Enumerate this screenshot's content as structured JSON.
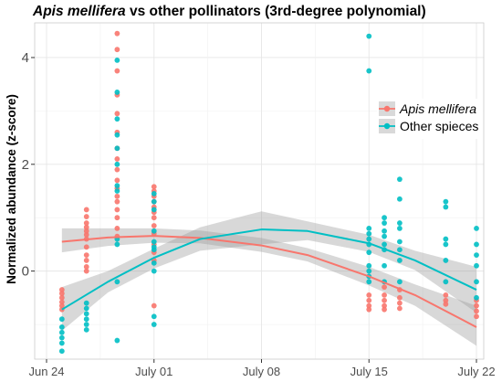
{
  "chart_data": {
    "type": "scatter",
    "title_italic": "Apis mellifera",
    "title_rest": " vs other pollinators (3rd-degree polynomial)",
    "xlabel": "",
    "ylabel": "Normalized abundance (z-score)",
    "x_axis": {
      "min_day": 0,
      "max_day": 28.5,
      "ticks": [
        {
          "label": "Jun 24",
          "day": 0
        },
        {
          "label": "July 01",
          "day": 7
        },
        {
          "label": "July 08",
          "day": 14
        },
        {
          "label": "July 15",
          "day": 21
        },
        {
          "label": "July 22",
          "day": 28
        }
      ]
    },
    "y_axis": {
      "range": [
        -1.65,
        4.65
      ],
      "ticks": [
        {
          "label": "0",
          "value": 0
        },
        {
          "label": "2",
          "value": 2
        },
        {
          "label": "4",
          "value": 4
        }
      ]
    },
    "grid": true,
    "legend": {
      "position": "right",
      "entries": [
        {
          "label": "Apis mellifera",
          "italic": true,
          "color": "#F8766D"
        },
        {
          "label": "Other spieces",
          "italic": false,
          "color": "#00BFC4"
        }
      ]
    },
    "series": [
      {
        "name": "Apis mellifera",
        "color": "#F8766D",
        "points": [
          [
            1,
            -0.35
          ],
          [
            1,
            -0.42
          ],
          [
            1,
            -0.5
          ],
          [
            1,
            -0.58
          ],
          [
            1,
            -0.65
          ],
          [
            1,
            -0.72
          ],
          [
            2.6,
            0.0
          ],
          [
            2.6,
            0.08
          ],
          [
            2.6,
            0.2
          ],
          [
            2.6,
            0.3
          ],
          [
            2.6,
            0.45
          ],
          [
            2.6,
            0.6
          ],
          [
            2.6,
            0.68
          ],
          [
            2.6,
            0.75
          ],
          [
            2.6,
            0.82
          ],
          [
            2.6,
            0.9
          ],
          [
            2.6,
            1.02
          ],
          [
            2.6,
            1.15
          ],
          [
            4.6,
            0.65
          ],
          [
            4.6,
            0.8
          ],
          [
            4.6,
            1.0
          ],
          [
            4.6,
            1.15
          ],
          [
            4.6,
            1.3
          ],
          [
            4.6,
            1.4
          ],
          [
            4.6,
            1.55
          ],
          [
            4.6,
            1.7
          ],
          [
            4.6,
            1.9
          ],
          [
            4.6,
            2.1
          ],
          [
            4.6,
            2.3
          ],
          [
            4.6,
            2.6
          ],
          [
            4.6,
            2.95
          ],
          [
            4.6,
            3.3
          ],
          [
            4.6,
            3.75
          ],
          [
            4.6,
            4.15
          ],
          [
            4.6,
            4.45
          ],
          [
            7,
            -0.65
          ],
          [
            7,
            0.2
          ],
          [
            7,
            0.35
          ],
          [
            7,
            0.5
          ],
          [
            7,
            0.7
          ],
          [
            7,
            0.85
          ],
          [
            7,
            1.0
          ],
          [
            7,
            1.1
          ],
          [
            7,
            1.2
          ],
          [
            7,
            1.3
          ],
          [
            7,
            1.4
          ],
          [
            7,
            1.5
          ],
          [
            7,
            1.58
          ],
          [
            21,
            -0.45
          ],
          [
            21,
            -0.55
          ],
          [
            21,
            -0.65
          ],
          [
            21,
            -0.72
          ],
          [
            22,
            -0.3
          ],
          [
            22,
            -0.45
          ],
          [
            22,
            -0.55
          ],
          [
            22,
            -0.65
          ],
          [
            22,
            -0.72
          ],
          [
            23,
            -0.35
          ],
          [
            23,
            -0.5
          ],
          [
            23,
            -0.6
          ],
          [
            23,
            -0.7
          ],
          [
            26,
            -0.45
          ],
          [
            26,
            -0.55
          ],
          [
            26,
            -0.62
          ],
          [
            28,
            -0.55
          ],
          [
            28,
            -0.65
          ],
          [
            28,
            -0.75
          ],
          [
            28,
            -0.85
          ]
        ]
      },
      {
        "name": "Other spieces",
        "color": "#00BFC4",
        "points": [
          [
            1,
            -0.9
          ],
          [
            1,
            -1.05
          ],
          [
            1,
            -1.15
          ],
          [
            1,
            -1.25
          ],
          [
            1,
            -1.35
          ],
          [
            1,
            -1.5
          ],
          [
            2.6,
            -0.6
          ],
          [
            2.6,
            -0.7
          ],
          [
            2.6,
            -0.8
          ],
          [
            2.6,
            -0.9
          ],
          [
            2.6,
            -1.0
          ],
          [
            2.6,
            -1.1
          ],
          [
            4.6,
            -1.3
          ],
          [
            4.6,
            -0.2
          ],
          [
            4.6,
            0.5
          ],
          [
            4.6,
            0.6
          ],
          [
            4.6,
            1.5
          ],
          [
            4.6,
            1.6
          ],
          [
            4.6,
            2.0
          ],
          [
            4.6,
            2.3
          ],
          [
            4.6,
            2.55
          ],
          [
            4.6,
            2.85
          ],
          [
            4.6,
            3.35
          ],
          [
            4.6,
            3.95
          ],
          [
            7,
            -1.0
          ],
          [
            7,
            -0.85
          ],
          [
            7,
            0.0
          ],
          [
            7,
            0.15
          ],
          [
            7,
            0.4
          ],
          [
            7,
            0.45
          ],
          [
            7,
            0.55
          ],
          [
            7,
            0.75
          ],
          [
            7,
            1.15
          ],
          [
            7,
            1.3
          ],
          [
            7,
            1.45
          ],
          [
            21,
            -0.2
          ],
          [
            21,
            -0.1
          ],
          [
            21,
            0.0
          ],
          [
            21,
            0.1
          ],
          [
            21,
            0.35
          ],
          [
            21,
            0.5
          ],
          [
            21,
            0.6
          ],
          [
            21,
            0.7
          ],
          [
            21,
            0.8
          ],
          [
            21,
            3.75
          ],
          [
            21,
            4.4
          ],
          [
            22,
            -0.2
          ],
          [
            22,
            0.1
          ],
          [
            22,
            0.4
          ],
          [
            22,
            0.5
          ],
          [
            22,
            0.65
          ],
          [
            22,
            0.75
          ],
          [
            22,
            0.9
          ],
          [
            22,
            1.0
          ],
          [
            23,
            -0.2
          ],
          [
            23,
            0.2
          ],
          [
            23,
            0.4
          ],
          [
            23,
            0.55
          ],
          [
            23,
            0.8
          ],
          [
            23,
            0.9
          ],
          [
            23,
            1.35
          ],
          [
            23,
            1.72
          ],
          [
            26,
            -0.2
          ],
          [
            26,
            0.2
          ],
          [
            26,
            0.5
          ],
          [
            26,
            0.6
          ],
          [
            26,
            1.2
          ],
          [
            26,
            1.3
          ],
          [
            28,
            -0.5
          ],
          [
            28,
            -0.2
          ],
          [
            28,
            0.1
          ],
          [
            28,
            0.3
          ],
          [
            28,
            0.5
          ],
          [
            28,
            0.8
          ]
        ]
      }
    ],
    "fit_curves": [
      {
        "series": "Apis mellifera",
        "color": "#F8766D",
        "points": [
          [
            1,
            0.55
          ],
          [
            4,
            0.63
          ],
          [
            7,
            0.66
          ],
          [
            10,
            0.62
          ],
          [
            14,
            0.48
          ],
          [
            17,
            0.3
          ],
          [
            21,
            -0.1
          ],
          [
            24,
            -0.45
          ],
          [
            28,
            -1.05
          ]
        ],
        "band_lower": [
          [
            1,
            0.35
          ],
          [
            4,
            0.47
          ],
          [
            7,
            0.53
          ],
          [
            10,
            0.52
          ],
          [
            14,
            0.36
          ],
          [
            17,
            0.18
          ],
          [
            21,
            -0.27
          ],
          [
            24,
            -0.65
          ],
          [
            28,
            -1.4
          ]
        ],
        "band_upper": [
          [
            1,
            0.8
          ],
          [
            4,
            0.8
          ],
          [
            7,
            0.8
          ],
          [
            10,
            0.76
          ],
          [
            14,
            0.62
          ],
          [
            17,
            0.43
          ],
          [
            21,
            0.08
          ],
          [
            24,
            -0.25
          ],
          [
            28,
            -0.65
          ]
        ]
      },
      {
        "series": "Other spieces",
        "color": "#00BFC4",
        "points": [
          [
            1,
            -0.72
          ],
          [
            4,
            -0.2
          ],
          [
            7,
            0.25
          ],
          [
            10,
            0.6
          ],
          [
            14,
            0.78
          ],
          [
            17,
            0.75
          ],
          [
            21,
            0.52
          ],
          [
            24,
            0.2
          ],
          [
            28,
            -0.35
          ]
        ],
        "band_lower": [
          [
            1,
            -1.12
          ],
          [
            4,
            -0.4
          ],
          [
            7,
            0.05
          ],
          [
            10,
            0.38
          ],
          [
            14,
            0.5
          ],
          [
            17,
            0.58
          ],
          [
            21,
            0.36
          ],
          [
            24,
            0.02
          ],
          [
            28,
            -0.78
          ]
        ],
        "band_upper": [
          [
            1,
            -0.3
          ],
          [
            4,
            0.0
          ],
          [
            7,
            0.42
          ],
          [
            10,
            0.82
          ],
          [
            14,
            1.12
          ],
          [
            17,
            0.93
          ],
          [
            21,
            0.68
          ],
          [
            24,
            0.38
          ],
          [
            28,
            0.08
          ]
        ]
      }
    ]
  }
}
